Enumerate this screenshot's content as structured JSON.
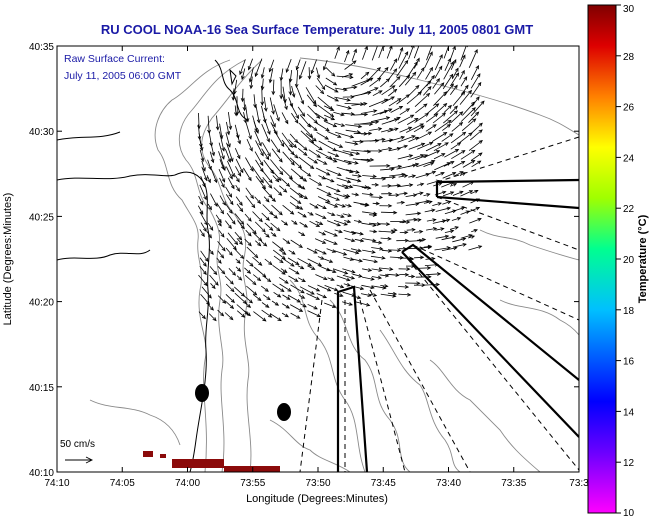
{
  "chart_data": {
    "type": "vector-field",
    "title": "RU COOL  NOAA-16  Sea Surface Temperature:  July 11, 2005 0801 GMT",
    "annotation": [
      "Raw Surface Current:",
      "July 11, 2005 06:00 GMT"
    ],
    "xlabel": "Longitude (Degrees:Minutes)",
    "ylabel": "Latitude (Degrees:Minutes)",
    "x_ticks": [
      "74:10",
      "74:05",
      "74:00",
      "73:55",
      "73:50",
      "73:45",
      "73:40",
      "73:35",
      "73:3"
    ],
    "y_ticks": [
      "40:10",
      "40:15",
      "40:20",
      "40:25",
      "40:30",
      "40:35"
    ],
    "xlim": [
      -74.1667,
      -73.5
    ],
    "ylim": [
      40.1667,
      40.5833
    ],
    "scale_label": "50 cm/s",
    "scale_value_cms": 50,
    "colorbar": {
      "label": "Temperature (°C)",
      "ticks": [
        10,
        12,
        14,
        16,
        18,
        20,
        22,
        24,
        26,
        28,
        30
      ],
      "range": [
        10,
        30
      ],
      "colormap": "jet",
      "colors": [
        "#ff00ff",
        "#0000ff",
        "#00c0ff",
        "#00ff80",
        "#c0ff00",
        "#ffff00",
        "#ff8000",
        "#cc0000",
        "#800000"
      ]
    },
    "land_color": "#ffffff",
    "coastline_color": "#000000",
    "contour_color": "#888888",
    "sst_patches": [
      {
        "lon_range": [
          -74.03,
          -73.96
        ],
        "lat_range": [
          40.17,
          40.175
        ],
        "temp_c": 29
      }
    ],
    "current_vectors": {
      "units": "cm/s",
      "region": {
        "lon_range": [
          -74.0,
          -73.7
        ],
        "lat_range": [
          40.3,
          40.55
        ]
      },
      "dominant_direction": "southeast (offshore flow turning south)"
    }
  }
}
